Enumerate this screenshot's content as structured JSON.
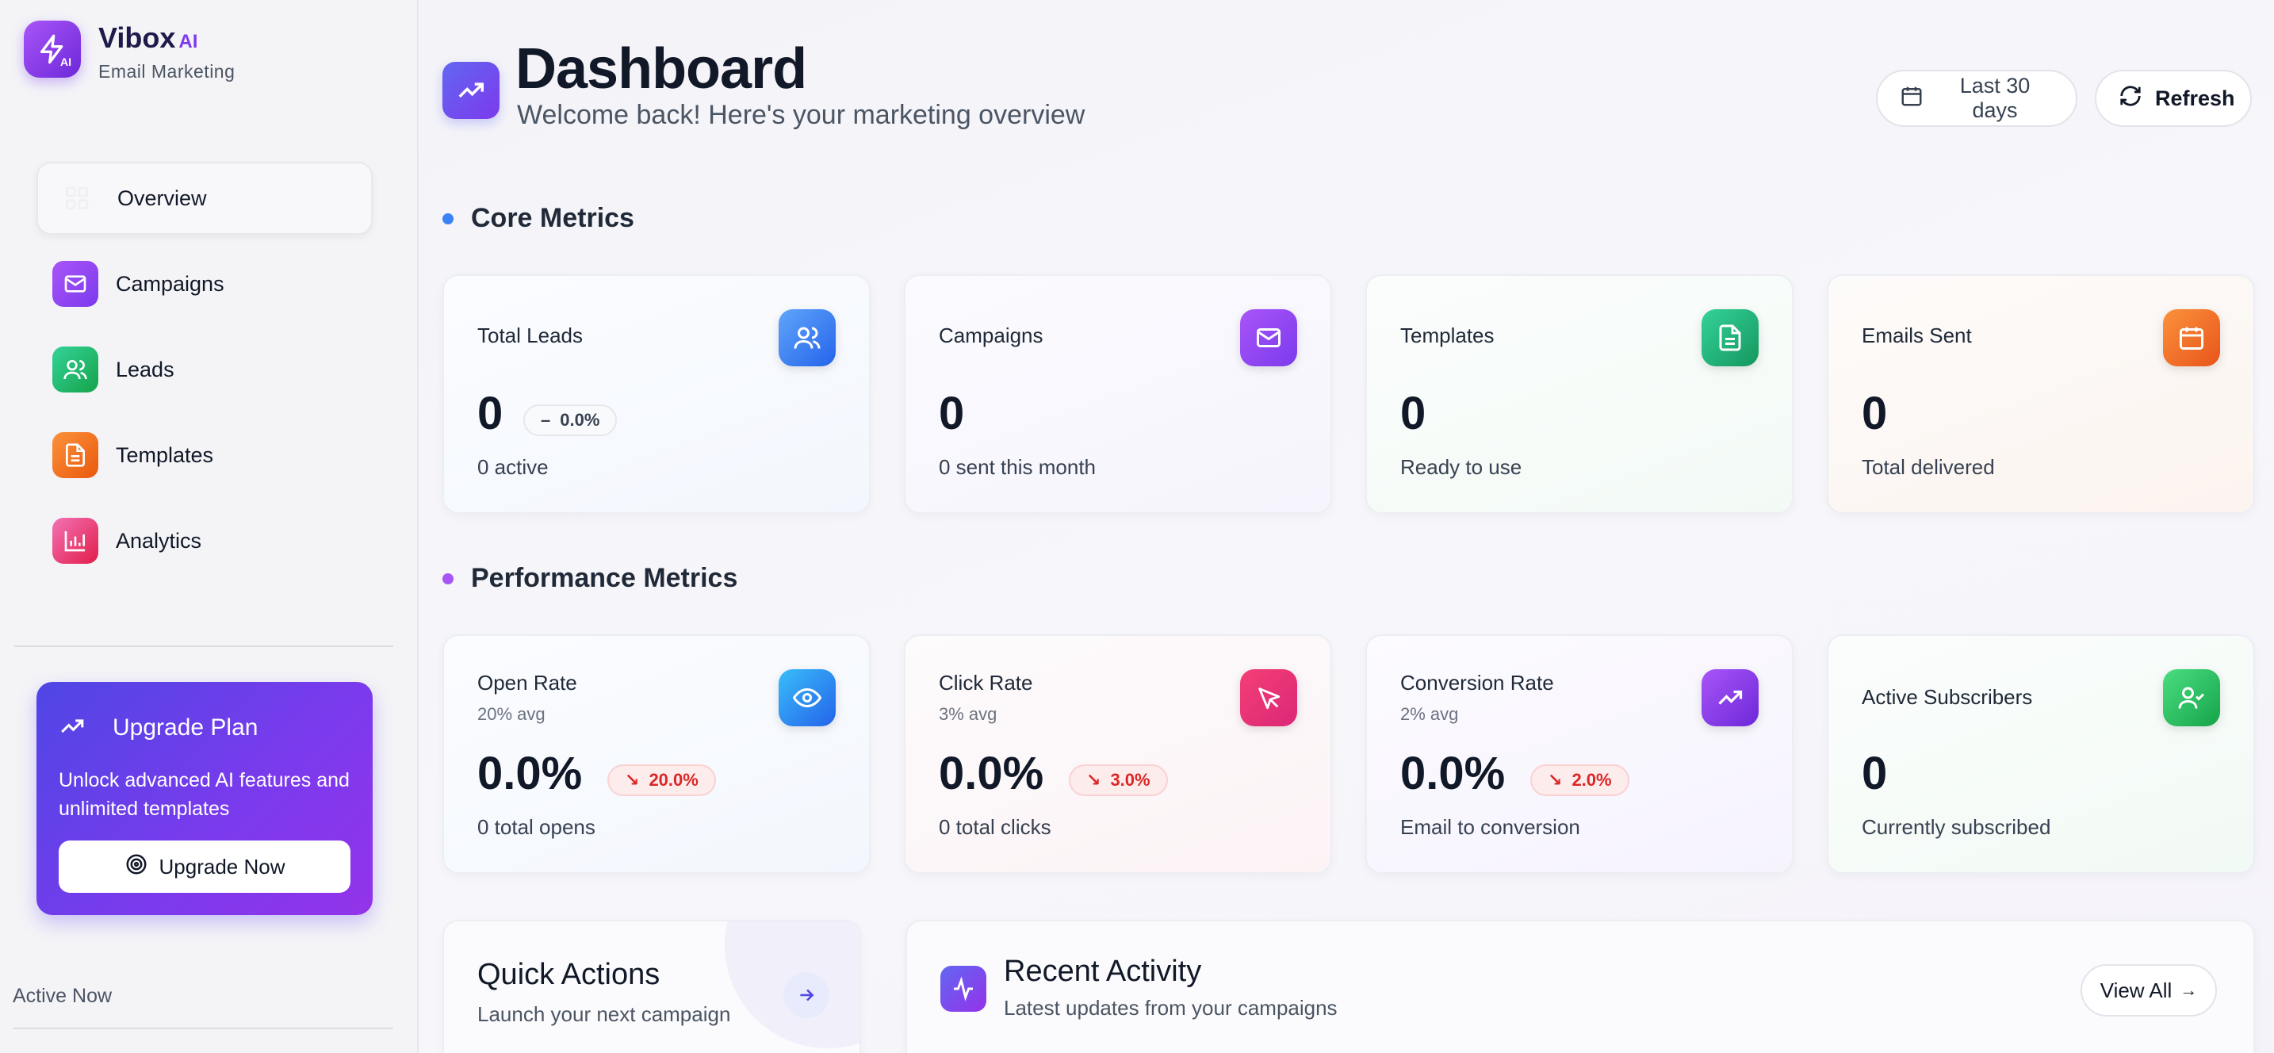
{
  "brand": {
    "name": "Vibox",
    "ai": "AI",
    "subtitle": "Email Marketing",
    "logo_mark": "AI"
  },
  "sidebar": {
    "items": [
      {
        "label": "Overview",
        "icon": "grid-icon",
        "active": true
      },
      {
        "label": "Campaigns",
        "icon": "mail-icon",
        "color": "#8b5cf6"
      },
      {
        "label": "Leads",
        "icon": "users-icon",
        "color": "#34b27b"
      },
      {
        "label": "Templates",
        "icon": "document-icon",
        "color": "#f26a3a"
      },
      {
        "label": "Analytics",
        "icon": "bar-chart-icon",
        "color": "#ec4878"
      }
    ],
    "upgrade": {
      "title": "Upgrade Plan",
      "text": "Unlock advanced AI features and unlimited templates",
      "button": "Upgrade Now"
    },
    "active_now": "Active Now"
  },
  "header": {
    "title": "Dashboard",
    "subtitle": "Welcome back! Here's your marketing overview",
    "range_button": "Last 30 days",
    "refresh_button": "Refresh"
  },
  "sections": {
    "core": "Core Metrics",
    "performance": "Performance Metrics"
  },
  "core_metrics": [
    {
      "label": "Total Leads",
      "value": "0",
      "badge": "0.0%",
      "badge_glyph": "–",
      "desc": "0 active",
      "icon": "users-icon",
      "color": "#3b82f6"
    },
    {
      "label": "Campaigns",
      "value": "0",
      "desc": "0 sent this month",
      "icon": "mail-icon",
      "color": "#8b5cf6"
    },
    {
      "label": "Templates",
      "value": "0",
      "desc": "Ready to use",
      "icon": "document-icon",
      "color": "#22a06b"
    },
    {
      "label": "Emails Sent",
      "value": "0",
      "desc": "Total delivered",
      "icon": "calendar-icon",
      "color": "#f26a2a"
    }
  ],
  "performance_metrics": [
    {
      "label": "Open Rate",
      "sublabel": "20% avg",
      "value": "0.0%",
      "badge": "20.0%",
      "badge_glyph": "↘",
      "desc": "0 total opens",
      "icon": "eye-icon",
      "color": "#0ea5e9"
    },
    {
      "label": "Click Rate",
      "sublabel": "3% avg",
      "value": "0.0%",
      "badge": "3.0%",
      "badge_glyph": "↘",
      "desc": "0 total clicks",
      "icon": "cursor-icon",
      "color": "#e11d62"
    },
    {
      "label": "Conversion Rate",
      "sublabel": "2% avg",
      "value": "0.0%",
      "badge": "2.0%",
      "badge_glyph": "↘",
      "desc": "Email to conversion",
      "icon": "trending-up-icon",
      "color": "#7c3aed"
    },
    {
      "label": "Active Subscribers",
      "value": "0",
      "desc": "Currently subscribed",
      "icon": "user-check-icon",
      "color": "#22a05b"
    }
  ],
  "quick_actions": {
    "title": "Quick Actions",
    "subtitle": "Launch your next campaign"
  },
  "recent_activity": {
    "title": "Recent Activity",
    "subtitle": "Latest updates from your campaigns",
    "view_all": "View All",
    "arrow": "→"
  }
}
